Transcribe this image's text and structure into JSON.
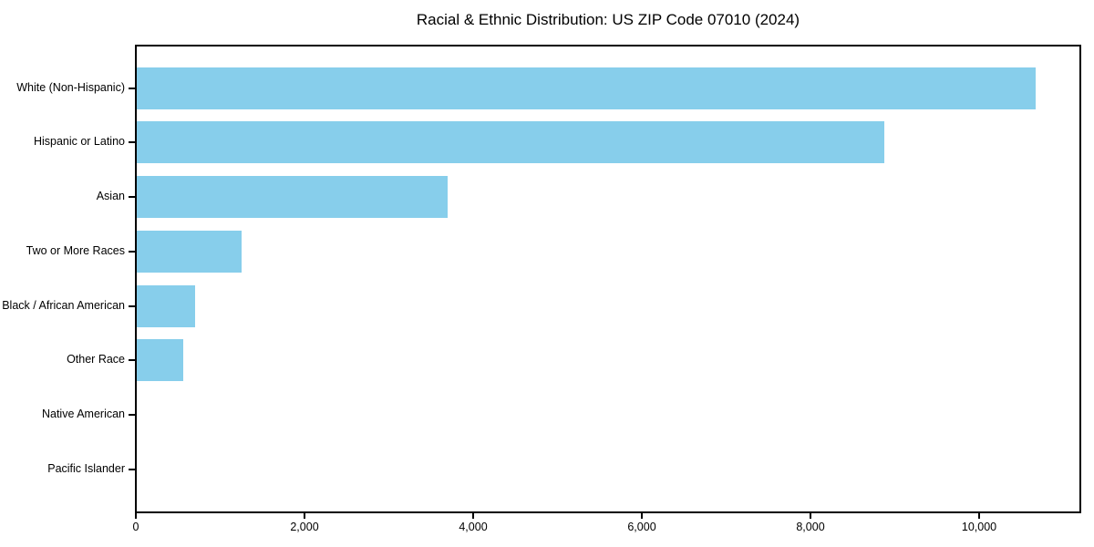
{
  "figure": {
    "background_color": "#ffffff",
    "axis_color": "#000000"
  },
  "chart_data": {
    "type": "bar",
    "orientation": "horizontal",
    "title": "Racial & Ethnic Distribution: US ZIP Code 07010 (2024)",
    "xlabel": "",
    "ylabel": "",
    "categories": [
      "White (Non-Hispanic)",
      "Hispanic or Latino",
      "Asian",
      "Two or More Races",
      "Black / African American",
      "Other Race",
      "Native American",
      "Pacific Islander"
    ],
    "values": [
      10670,
      8880,
      3700,
      1250,
      700,
      560,
      0,
      0
    ],
    "xlim": [
      0,
      11200
    ],
    "xticks": [
      0,
      2000,
      4000,
      6000,
      8000,
      10000
    ],
    "xtick_labels": [
      "0",
      "2,000",
      "4,000",
      "6,000",
      "8,000",
      "10,000"
    ],
    "bar_color": "#87CEEB",
    "grid": false,
    "legend": null
  }
}
